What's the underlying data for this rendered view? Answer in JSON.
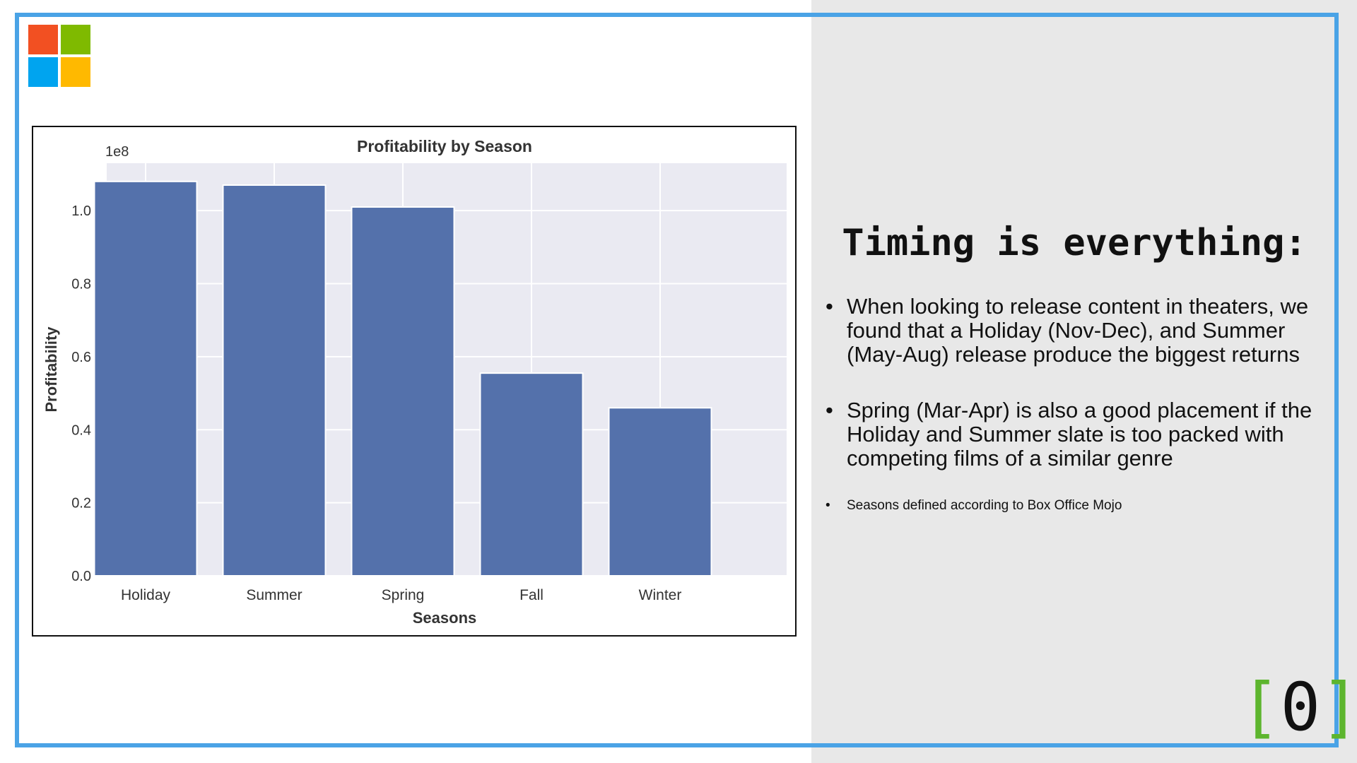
{
  "logo": {
    "name": "microsoft-logo",
    "colors": [
      "#f25022",
      "#7fba00",
      "#00a4ef",
      "#ffb900"
    ]
  },
  "chart_data": {
    "type": "bar",
    "title": "Profitability by Season",
    "xlabel": "Seasons",
    "ylabel": "Profitability",
    "offset_label": "1e8",
    "categories": [
      "Holiday",
      "Summer",
      "Spring",
      "Fall",
      "Winter"
    ],
    "values": [
      1.08,
      1.07,
      1.01,
      0.555,
      0.46
    ],
    "value_unit_multiplier": 100000000,
    "ylim": [
      0,
      1.13
    ],
    "yticks": [
      0.0,
      0.2,
      0.4,
      0.6,
      0.8,
      1.0
    ],
    "ytick_labels": [
      "0.0",
      "0.2",
      "0.4",
      "0.6",
      "0.8",
      "1.0"
    ],
    "grid": true,
    "bar_color": "#5471ab",
    "plot_background": "#eaeaf2"
  },
  "panel": {
    "title": "Timing is everything:",
    "bullets": [
      "When looking to release content in theaters, we found that a Holiday (Nov-Dec), and Summer  (May-Aug) release produce the biggest returns",
      "Spring (Mar-Apr) is also a good placement if the Holiday and Summer slate is too packed with competing films of a similar genre"
    ],
    "footnote": "Seasons defined according to Box Office Mojo"
  },
  "badge": {
    "left": "[",
    "digit": "0",
    "right": "]",
    "bracket_color": "#5db52e"
  },
  "colors": {
    "frame": "#4aa3e6",
    "right_panel": "#e8e8e8"
  }
}
